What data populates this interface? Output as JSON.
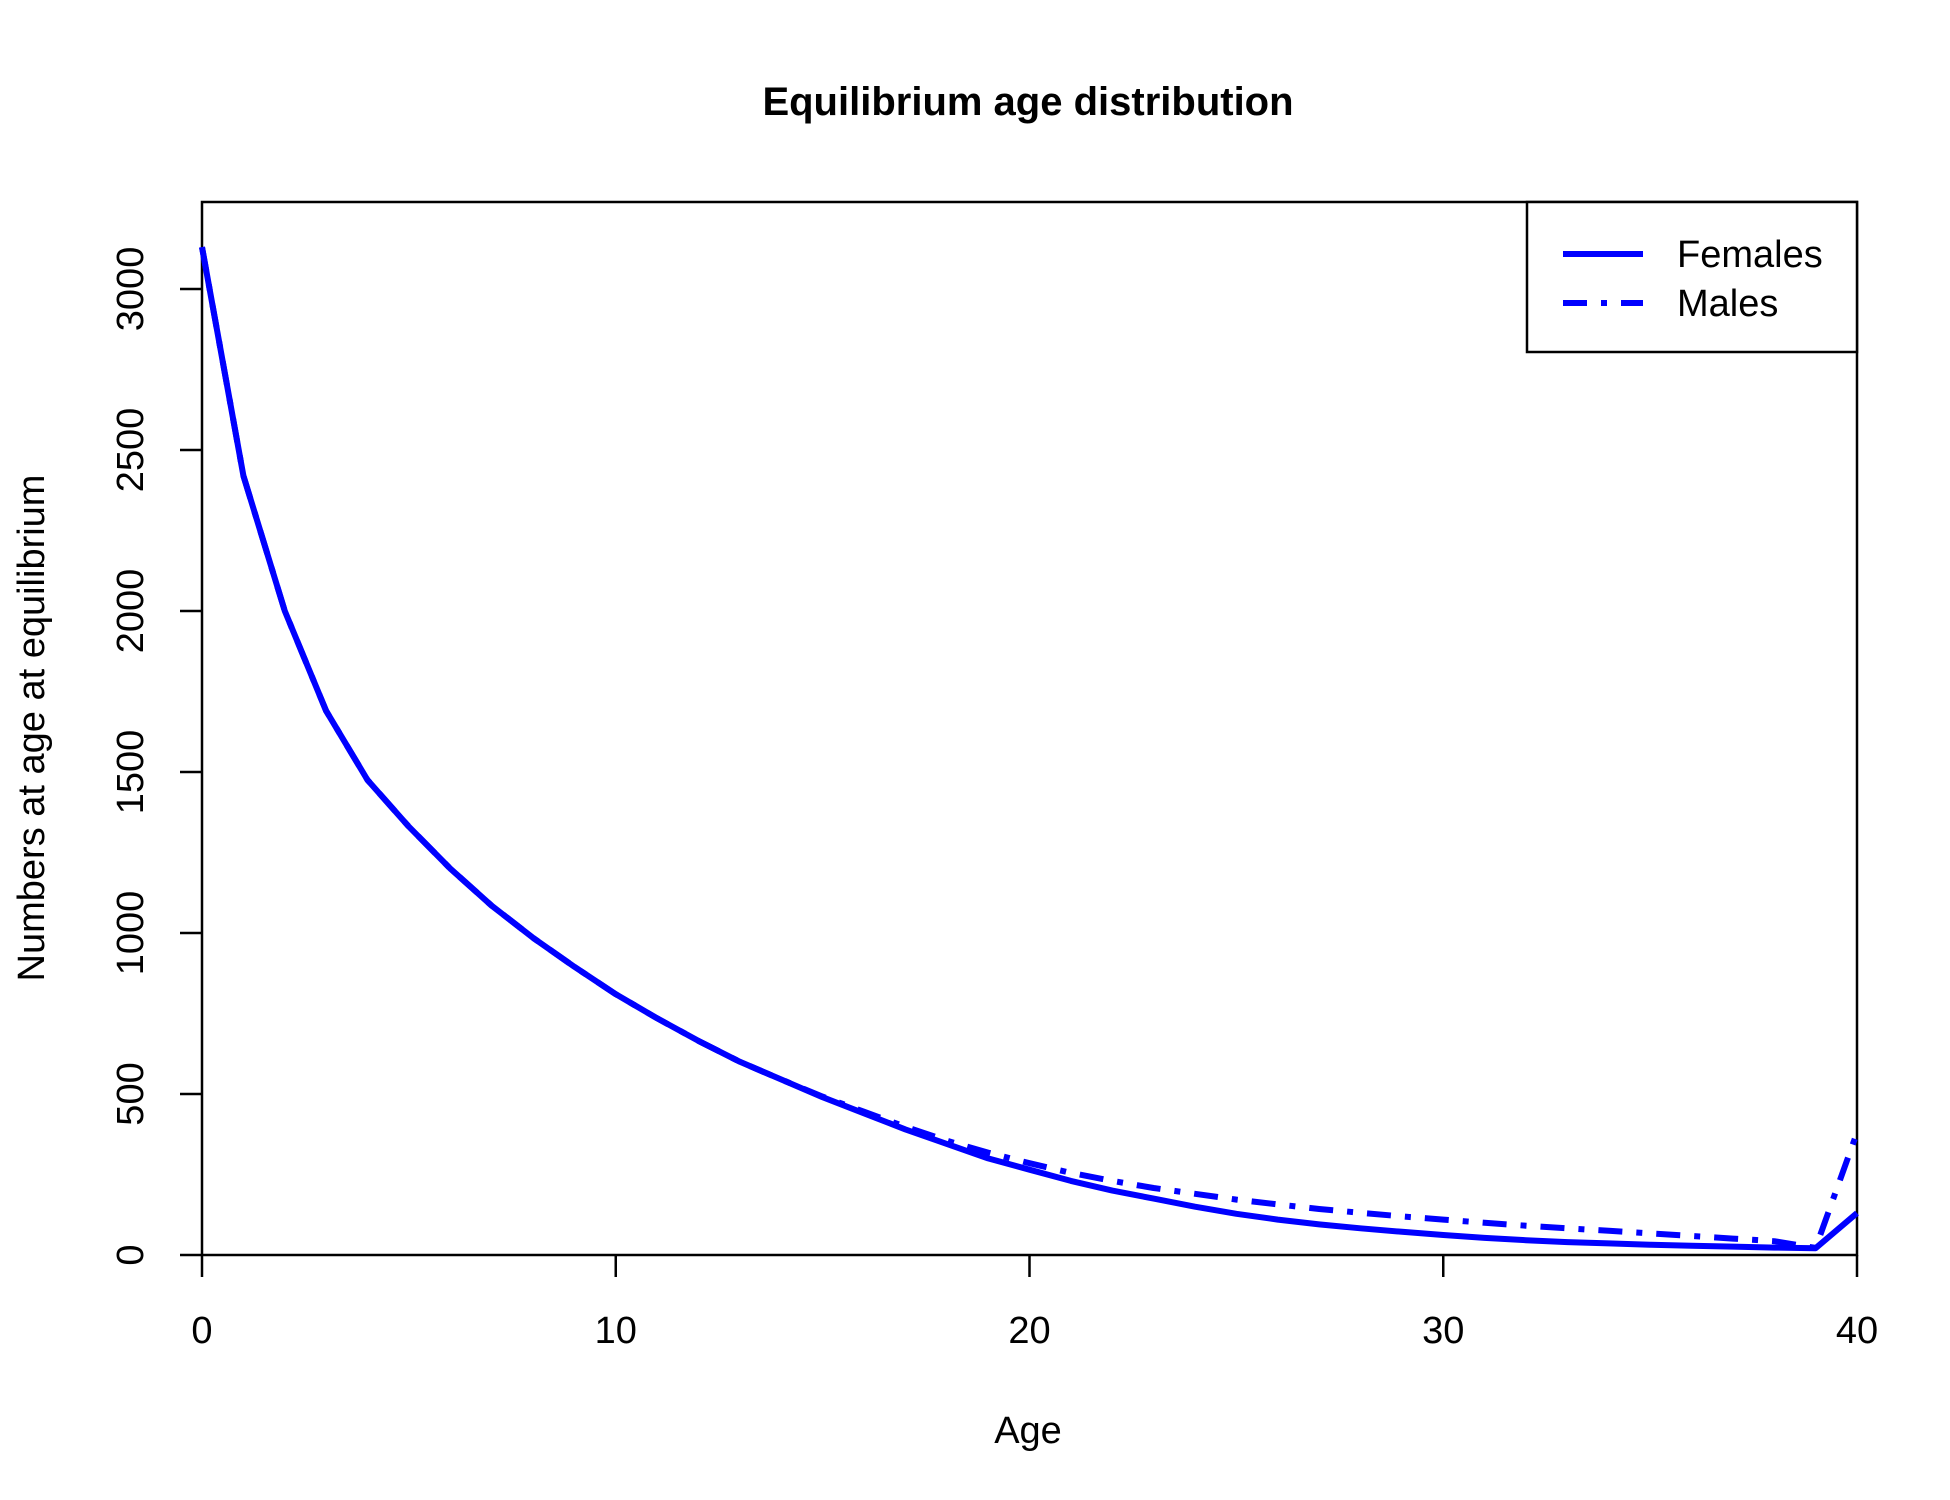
{
  "chart_data": {
    "type": "line",
    "title": "Equilibrium age distribution",
    "xlabel": "Age",
    "ylabel": "Numbers at age at equilibrium",
    "xlim": [
      0,
      40
    ],
    "ylim": [
      0,
      3270
    ],
    "x_ticks": [
      0,
      10,
      20,
      30,
      40
    ],
    "y_ticks": [
      0,
      500,
      1000,
      1500,
      2000,
      2500,
      3000
    ],
    "grid": false,
    "legend": {
      "position": "top-right",
      "entries": [
        "Females",
        "Males"
      ]
    },
    "line_color": "#0000ff",
    "x": [
      0,
      1,
      2,
      3,
      4,
      5,
      6,
      7,
      8,
      9,
      10,
      11,
      12,
      13,
      14,
      15,
      16,
      17,
      18,
      19,
      20,
      21,
      22,
      23,
      24,
      25,
      26,
      27,
      28,
      29,
      30,
      31,
      32,
      33,
      34,
      35,
      36,
      37,
      38,
      39,
      40
    ],
    "series": [
      {
        "name": "Females",
        "style": "solid",
        "values": [
          3130,
          2420,
          2000,
          1690,
          1475,
          1330,
          1200,
          1085,
          985,
          895,
          810,
          735,
          665,
          600,
          545,
          490,
          440,
          390,
          345,
          300,
          265,
          230,
          200,
          175,
          150,
          128,
          110,
          95,
          83,
          72,
          62,
          53,
          46,
          40,
          36,
          32,
          29,
          26,
          23,
          21,
          130
        ]
      },
      {
        "name": "Males",
        "style": "dashed",
        "values": [
          3130,
          2420,
          2000,
          1690,
          1475,
          1330,
          1200,
          1085,
          985,
          895,
          810,
          735,
          665,
          600,
          545,
          492,
          445,
          398,
          355,
          318,
          285,
          255,
          230,
          208,
          190,
          172,
          157,
          143,
          131,
          120,
          110,
          100,
          91,
          83,
          75,
          67,
          59,
          51,
          43,
          22,
          380
        ]
      }
    ]
  }
}
